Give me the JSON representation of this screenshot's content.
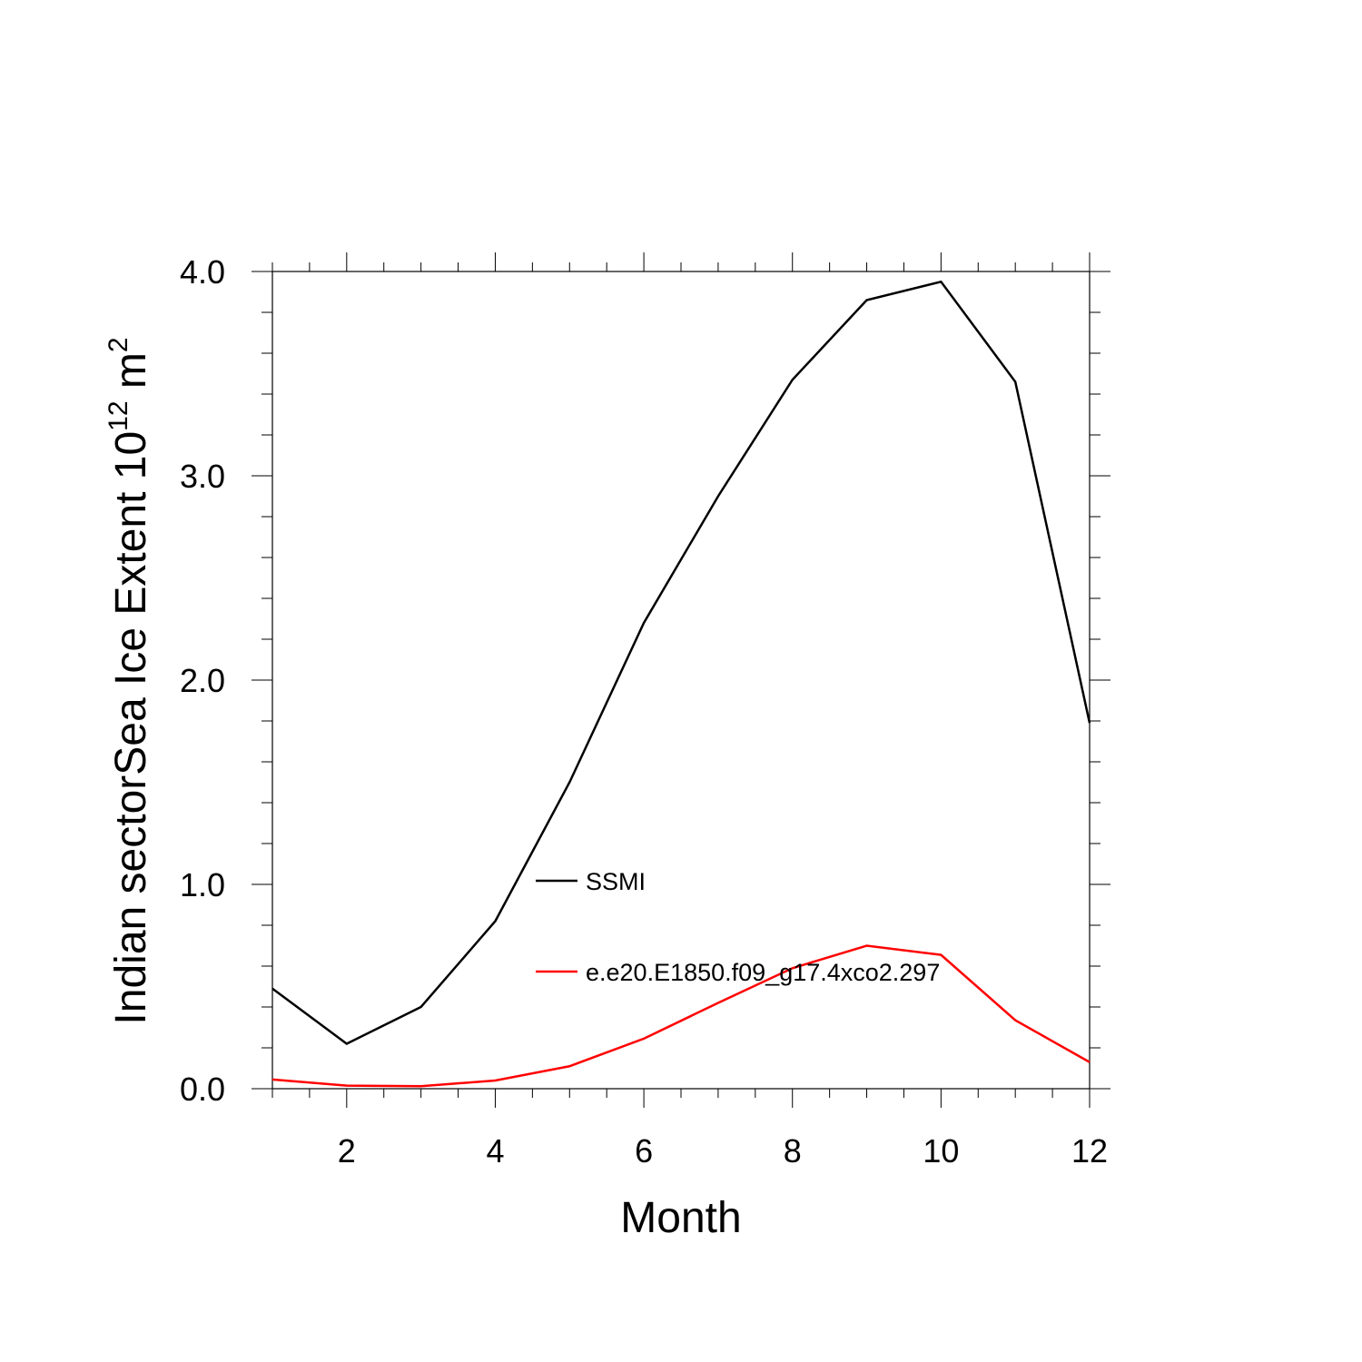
{
  "chart_data": {
    "type": "line",
    "title": "",
    "xlabel": "Month",
    "ylabel": {
      "main": "Indian sectorSea Ice Extent 10",
      "exponent": "12",
      "unit": " m",
      "unit_exponent": "2"
    },
    "xlim": [
      1,
      12
    ],
    "ylim": [
      0,
      4
    ],
    "x": [
      1,
      2,
      3,
      4,
      5,
      6,
      7,
      8,
      9,
      10,
      11,
      12
    ],
    "x_ticks": [
      2,
      4,
      6,
      8,
      10,
      12
    ],
    "x_tick_labels": [
      "2",
      "4",
      "6",
      "8",
      "10",
      "12"
    ],
    "y_ticks": [
      0,
      1,
      2,
      3,
      4
    ],
    "y_tick_labels": [
      "0.0",
      "1.0",
      "2.0",
      "3.0",
      "4.0"
    ],
    "grid": false,
    "series": [
      {
        "name": "SSMI",
        "color": "#000000",
        "values": [
          0.49,
          0.22,
          0.4,
          0.82,
          1.5,
          2.28,
          2.9,
          3.47,
          3.86,
          3.95,
          3.46,
          1.79
        ]
      },
      {
        "name": "e.e20.E1850.f09_g17.4xco2.297",
        "color": "#ff0000",
        "values": [
          0.045,
          0.015,
          0.012,
          0.04,
          0.11,
          0.245,
          0.42,
          0.59,
          0.7,
          0.655,
          0.335,
          0.13
        ]
      }
    ]
  }
}
